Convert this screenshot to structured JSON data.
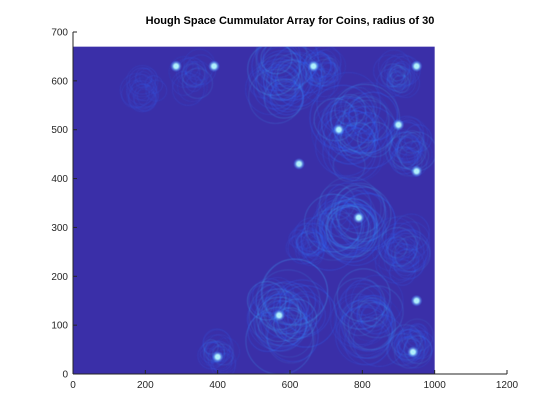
{
  "chart_data": {
    "type": "heatmap",
    "title": "Hough Space Cummulator Array for Coins, radius of 30",
    "xlabel": "",
    "ylabel": "",
    "xlim": [
      0,
      1200
    ],
    "ylim": [
      0,
      700
    ],
    "xticks": [
      0,
      200,
      400,
      600,
      800,
      1000,
      1200
    ],
    "yticks": [
      0,
      100,
      200,
      300,
      400,
      500,
      600,
      700
    ],
    "grid": false,
    "legend": "none",
    "image_extent": {
      "x": [
        0,
        1000
      ],
      "y": [
        0,
        670
      ]
    },
    "colors": {
      "background": "#3a2fa8",
      "ring": "#2e6bff",
      "ring_bright": "#3fb0ff",
      "peak": "#a8f4ff"
    },
    "ring_clusters": [
      {
        "cx": 200,
        "cy": 580,
        "r": 60,
        "intensity": 0.35
      },
      {
        "cx": 330,
        "cy": 610,
        "r": 55,
        "intensity": 0.3
      },
      {
        "cx": 580,
        "cy": 600,
        "r": 100,
        "intensity": 0.9
      },
      {
        "cx": 680,
        "cy": 620,
        "r": 60,
        "intensity": 0.5
      },
      {
        "cx": 780,
        "cy": 490,
        "r": 120,
        "intensity": 1.0
      },
      {
        "cx": 930,
        "cy": 460,
        "r": 70,
        "intensity": 0.5
      },
      {
        "cx": 900,
        "cy": 610,
        "r": 60,
        "intensity": 0.45
      },
      {
        "cx": 760,
        "cy": 300,
        "r": 110,
        "intensity": 0.95
      },
      {
        "cx": 650,
        "cy": 270,
        "r": 60,
        "intensity": 0.4
      },
      {
        "cx": 920,
        "cy": 250,
        "r": 80,
        "intensity": 0.6
      },
      {
        "cx": 580,
        "cy": 120,
        "r": 120,
        "intensity": 1.0
      },
      {
        "cx": 820,
        "cy": 110,
        "r": 100,
        "intensity": 0.7
      },
      {
        "cx": 400,
        "cy": 40,
        "r": 50,
        "intensity": 0.35
      },
      {
        "cx": 940,
        "cy": 60,
        "r": 60,
        "intensity": 0.5
      }
    ],
    "peaks": [
      {
        "x": 285,
        "y": 630
      },
      {
        "x": 390,
        "y": 630
      },
      {
        "x": 665,
        "y": 630
      },
      {
        "x": 950,
        "y": 630
      },
      {
        "x": 735,
        "y": 500
      },
      {
        "x": 900,
        "y": 510
      },
      {
        "x": 625,
        "y": 430
      },
      {
        "x": 950,
        "y": 415
      },
      {
        "x": 790,
        "y": 320
      },
      {
        "x": 950,
        "y": 150
      },
      {
        "x": 570,
        "y": 120
      },
      {
        "x": 400,
        "y": 35
      },
      {
        "x": 940,
        "y": 45
      }
    ]
  }
}
